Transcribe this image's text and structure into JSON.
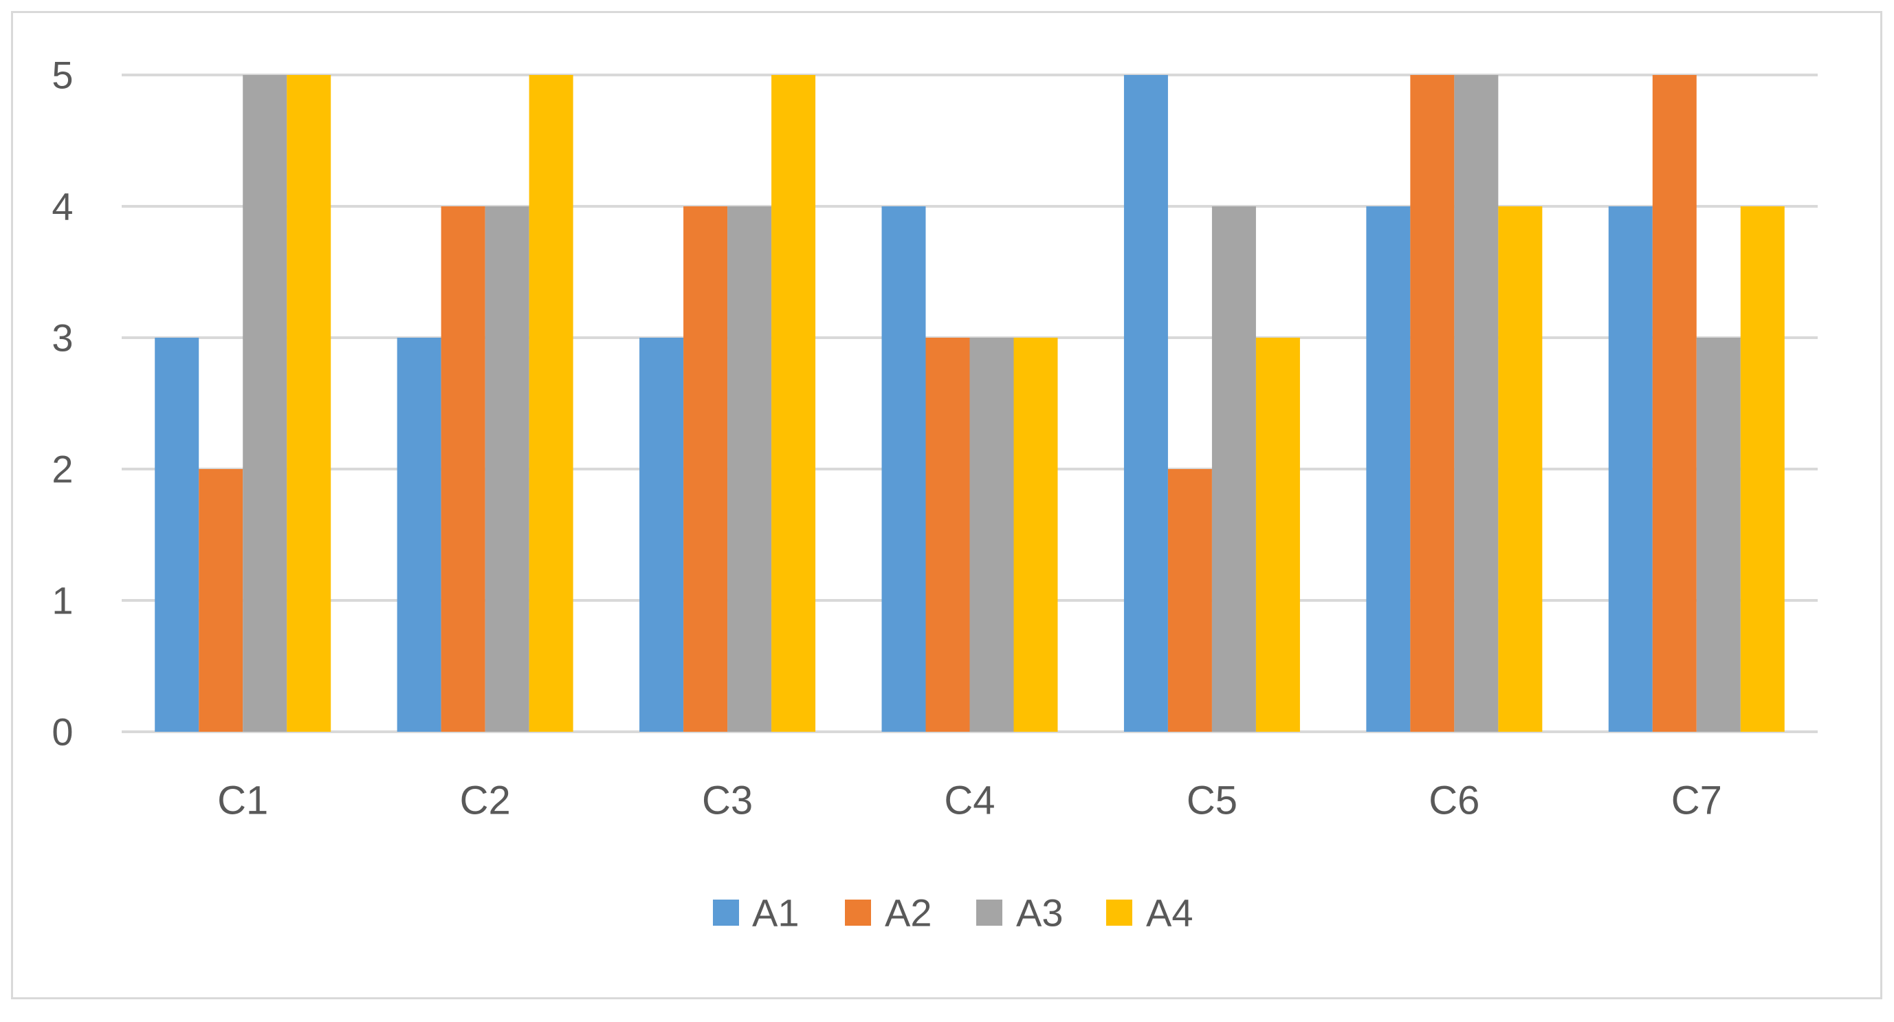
{
  "chart_data": {
    "type": "bar",
    "title": "",
    "xlabel": "",
    "ylabel": "",
    "categories": [
      "C1",
      "C2",
      "C3",
      "C4",
      "C5",
      "C6",
      "C7"
    ],
    "series": [
      {
        "name": "A1",
        "color": "#5b9bd5",
        "values": [
          3,
          3,
          3,
          4,
          5,
          4,
          4
        ]
      },
      {
        "name": "A2",
        "color": "#ed7d31",
        "values": [
          2,
          4,
          4,
          3,
          2,
          5,
          5
        ]
      },
      {
        "name": "A3",
        "color": "#a5a5a5",
        "values": [
          5,
          4,
          4,
          3,
          4,
          5,
          3
        ]
      },
      {
        "name": "A4",
        "color": "#ffc000",
        "values": [
          5,
          5,
          5,
          3,
          3,
          4,
          4
        ]
      }
    ],
    "ylim": [
      0,
      5
    ],
    "yticks": [
      "0",
      "1",
      "2",
      "3",
      "4",
      "5"
    ],
    "grid": true,
    "gridline_color": "#d9d9d9",
    "legend_position": "bottom"
  }
}
